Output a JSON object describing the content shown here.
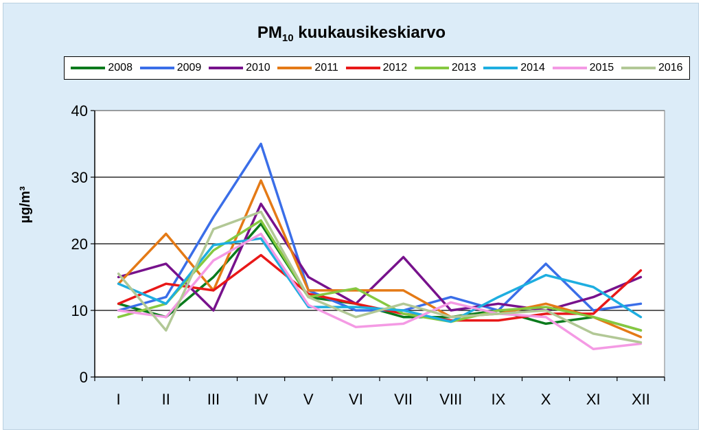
{
  "chart_data": {
    "type": "line",
    "title_main": "PM",
    "title_sub": "10",
    "title_rest": " kuukausikeskiarvo",
    "ylabel": "µg/m³",
    "xlabel": "",
    "categories": [
      "I",
      "II",
      "III",
      "IV",
      "V",
      "VI",
      "VII",
      "VIII",
      "IX",
      "X",
      "XI",
      "XII"
    ],
    "ylim": [
      0,
      40
    ],
    "yticks": [
      0,
      10,
      20,
      30,
      40
    ],
    "grid": true,
    "legend_position": "top",
    "series": [
      {
        "name": "2008",
        "color": "#0a7a1c",
        "values": [
          11,
          9,
          15,
          23,
          12,
          11,
          9,
          9,
          10,
          8,
          9,
          7
        ]
      },
      {
        "name": "2009",
        "color": "#3a6ee8",
        "values": [
          10,
          12,
          24,
          35,
          13,
          10,
          10,
          12,
          10,
          17,
          10,
          11
        ]
      },
      {
        "name": "2010",
        "color": "#77128c",
        "values": [
          15,
          17,
          10,
          26,
          15,
          11,
          18,
          10,
          11,
          10,
          12,
          15
        ]
      },
      {
        "name": "2011",
        "color": "#e47a16",
        "values": [
          14,
          21.5,
          13,
          29.5,
          13,
          13,
          13,
          9,
          9.5,
          11,
          9,
          6
        ]
      },
      {
        "name": "2012",
        "color": "#e81818",
        "values": [
          11,
          14,
          13,
          18.3,
          12.5,
          11,
          9.5,
          8.5,
          8.5,
          9.5,
          9.5,
          16
        ]
      },
      {
        "name": "2013",
        "color": "#86c840",
        "values": [
          9,
          11,
          19,
          23.5,
          12,
          13.3,
          9.5,
          8.3,
          10,
          10.5,
          9,
          7
        ]
      },
      {
        "name": "2014",
        "color": "#1eaee0",
        "values": [
          14,
          11,
          19.8,
          20.8,
          10.5,
          10.5,
          10,
          8.3,
          12,
          15.3,
          13.5,
          9
        ]
      },
      {
        "name": "2015",
        "color": "#f49ae4",
        "values": [
          10,
          9,
          17.5,
          21.5,
          10.8,
          7.5,
          8,
          11.2,
          9.5,
          9,
          4.2,
          5
        ]
      },
      {
        "name": "2016",
        "color": "#b2c896",
        "values": [
          15.5,
          7,
          22.2,
          24.8,
          12,
          9,
          11,
          9,
          9.5,
          10,
          6.5,
          5.2
        ]
      }
    ]
  }
}
